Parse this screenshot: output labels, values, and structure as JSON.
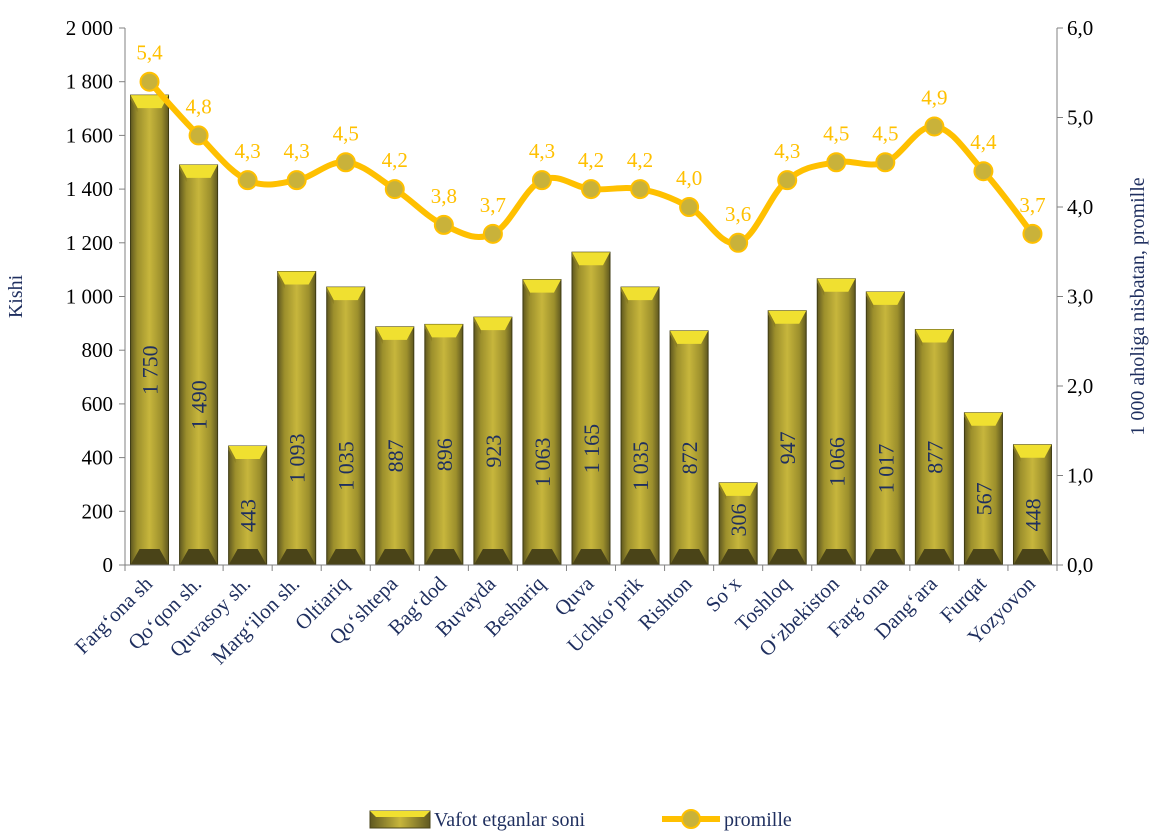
{
  "chart_data": {
    "type": "bar",
    "title": "",
    "categories": [
      "Farg‘ona sh",
      "Qo‘qon sh.",
      "Quvasoy sh.",
      "Marg‘ilon sh.",
      "Oltiariq",
      "Qo‘shtepa",
      "Bag‘dod",
      "Buvayda",
      "Beshariq",
      "Quva",
      "Uchko‘prik",
      "Rishton",
      "So‘x",
      "Toshloq",
      "O‘zbekiston",
      "Farg‘ona",
      "Dang‘ara",
      "Furqat",
      "Yozyovon"
    ],
    "series": [
      {
        "name": "Vafot etganlar soni",
        "type": "bar",
        "axis": "left",
        "values": [
          1750,
          1490,
          443,
          1093,
          1035,
          887,
          896,
          923,
          1063,
          1165,
          1035,
          872,
          306,
          947,
          1066,
          1017,
          877,
          567,
          448
        ],
        "labels": [
          "1 750",
          "1 490",
          "443",
          "1 093",
          "1 035",
          "887",
          "896",
          "923",
          "1 063",
          "1 165",
          "1 035",
          "872",
          "306",
          "947",
          "1 066",
          "1 017",
          "877",
          "567",
          "448"
        ]
      },
      {
        "name": "promille",
        "type": "line",
        "axis": "right",
        "values": [
          5.4,
          4.8,
          4.3,
          4.3,
          4.5,
          4.2,
          3.8,
          3.7,
          4.3,
          4.2,
          4.2,
          4.0,
          3.6,
          4.3,
          4.5,
          4.5,
          4.9,
          4.4,
          3.7
        ],
        "labels": [
          "5,4",
          "4,8",
          "4,3",
          "4,3",
          "4,5",
          "4,2",
          "3,8",
          "3,7",
          "4,3",
          "4,2",
          "4,2",
          "4,0",
          "3,6",
          "4,3",
          "4,5",
          "4,5",
          "4,9",
          "4,4",
          "3,7"
        ]
      }
    ],
    "ylabel_left": "Kishi",
    "ylabel_right": "1 000 aholiga nisbatan, promille",
    "ylim_left": [
      0,
      2000
    ],
    "ylim_right": [
      0,
      6
    ],
    "yticks_left": [
      "0",
      "200",
      "400",
      "600",
      "800",
      "1 000",
      "1 200",
      "1 400",
      "1 600",
      "1 800",
      "2 000"
    ],
    "yticks_right": [
      "0,0",
      "1,0",
      "2,0",
      "3,0",
      "4,0",
      "5,0",
      "6,0"
    ],
    "grid": false,
    "legend_position": "bottom",
    "colors": {
      "bar_face": "#b5a532",
      "bar_top": "#f0e030",
      "bar_dark": "#4a4418",
      "line": "#ffc000",
      "marker": "#c9b23a",
      "bar_label": "#1f2f5f",
      "line_label": "#ffc000",
      "axis_text": "#000000",
      "category_text": "#1f2f5f"
    }
  }
}
